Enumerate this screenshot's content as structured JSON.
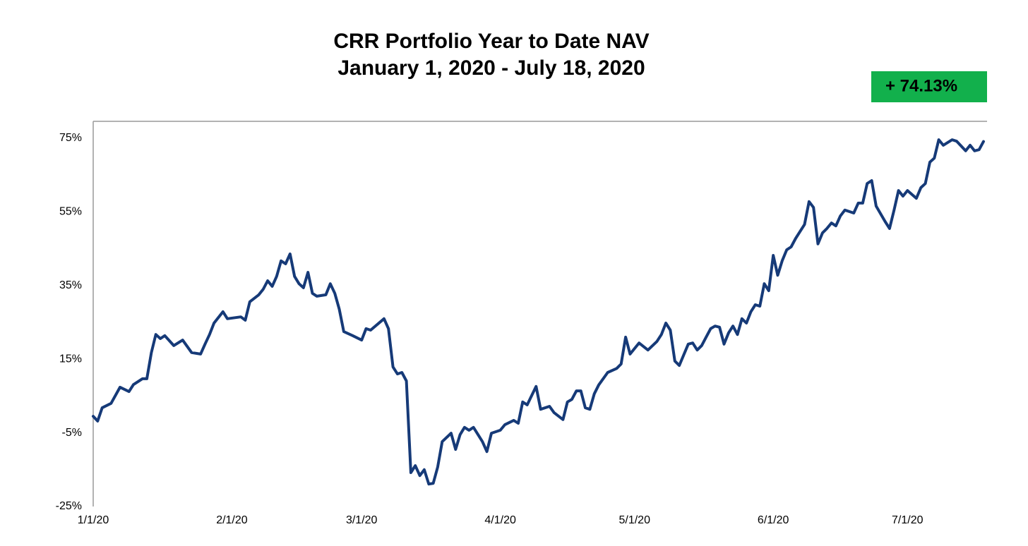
{
  "chart_data": {
    "type": "line",
    "title": "CRR Portfolio Year to Date NAV",
    "subtitle": "January 1, 2020 - July 18, 2020",
    "annotation": "+ 74.13%",
    "annotation_color": "#12b04c",
    "color": "#163a78",
    "x": [
      "2020-01-01",
      "2020-01-02",
      "2020-01-03",
      "2020-01-05",
      "2020-01-07",
      "2020-01-09",
      "2020-01-10",
      "2020-01-12",
      "2020-01-13",
      "2020-01-14",
      "2020-01-15",
      "2020-01-16",
      "2020-01-17",
      "2020-01-19",
      "2020-01-21",
      "2020-01-23",
      "2020-01-25",
      "2020-01-26",
      "2020-01-27",
      "2020-01-28",
      "2020-01-30",
      "2020-01-31",
      "2020-02-03",
      "2020-02-04",
      "2020-02-05",
      "2020-02-07",
      "2020-02-08",
      "2020-02-09",
      "2020-02-10",
      "2020-02-11",
      "2020-02-12",
      "2020-02-13",
      "2020-02-14",
      "2020-02-15",
      "2020-02-16",
      "2020-02-17",
      "2020-02-18",
      "2020-02-19",
      "2020-02-20",
      "2020-02-22",
      "2020-02-23",
      "2020-02-24",
      "2020-02-25",
      "2020-02-26",
      "2020-02-28",
      "2020-03-01",
      "2020-03-02",
      "2020-03-03",
      "2020-03-06",
      "2020-03-07",
      "2020-03-08",
      "2020-03-09",
      "2020-03-10",
      "2020-03-11",
      "2020-03-12",
      "2020-03-13",
      "2020-03-14",
      "2020-03-15",
      "2020-03-16",
      "2020-03-17",
      "2020-03-18",
      "2020-03-19",
      "2020-03-21",
      "2020-03-22",
      "2020-03-23",
      "2020-03-24",
      "2020-03-25",
      "2020-03-26",
      "2020-03-28",
      "2020-03-29",
      "2020-03-30",
      "2020-04-01",
      "2020-04-02",
      "2020-04-04",
      "2020-04-05",
      "2020-04-06",
      "2020-04-07",
      "2020-04-09",
      "2020-04-10",
      "2020-04-12",
      "2020-04-13",
      "2020-04-15",
      "2020-04-16",
      "2020-04-17",
      "2020-04-18",
      "2020-04-19",
      "2020-04-20",
      "2020-04-21",
      "2020-04-22",
      "2020-04-23",
      "2020-04-25",
      "2020-04-27",
      "2020-04-28",
      "2020-04-29",
      "2020-04-30",
      "2020-05-02",
      "2020-05-04",
      "2020-05-06",
      "2020-05-07",
      "2020-05-08",
      "2020-05-09",
      "2020-05-10",
      "2020-05-11",
      "2020-05-13",
      "2020-05-14",
      "2020-05-15",
      "2020-05-16",
      "2020-05-17",
      "2020-05-18",
      "2020-05-19",
      "2020-05-20",
      "2020-05-21",
      "2020-05-22",
      "2020-05-23",
      "2020-05-24",
      "2020-05-25",
      "2020-05-26",
      "2020-05-27",
      "2020-05-28",
      "2020-05-29",
      "2020-05-30",
      "2020-05-31",
      "2020-06-01",
      "2020-06-02",
      "2020-06-03",
      "2020-06-04",
      "2020-06-05",
      "2020-06-06",
      "2020-06-07",
      "2020-06-08",
      "2020-06-09",
      "2020-06-10",
      "2020-06-11",
      "2020-06-12",
      "2020-06-13",
      "2020-06-14",
      "2020-06-15",
      "2020-06-16",
      "2020-06-17",
      "2020-06-18",
      "2020-06-19",
      "2020-06-20",
      "2020-06-21",
      "2020-06-22",
      "2020-06-23",
      "2020-06-24",
      "2020-06-26",
      "2020-06-27",
      "2020-06-28",
      "2020-06-29",
      "2020-06-30",
      "2020-07-01",
      "2020-07-03",
      "2020-07-04",
      "2020-07-05",
      "2020-07-06",
      "2020-07-07",
      "2020-07-08",
      "2020-07-09",
      "2020-07-11",
      "2020-07-12",
      "2020-07-14",
      "2020-07-15",
      "2020-07-16",
      "2020-07-17",
      "2020-07-18"
    ],
    "values": [
      -0.5,
      -1.8,
      1.8,
      3.0,
      7.4,
      6.2,
      8.1,
      9.7,
      9.7,
      16.8,
      21.7,
      20.6,
      21.4,
      18.7,
      20.2,
      16.8,
      16.4,
      19.1,
      21.7,
      24.8,
      27.9,
      26.0,
      26.5,
      25.6,
      30.6,
      32.5,
      34.0,
      36.3,
      34.8,
      37.5,
      41.7,
      40.9,
      43.6,
      37.5,
      35.5,
      34.4,
      38.6,
      32.9,
      32.1,
      32.5,
      35.5,
      32.9,
      28.6,
      22.5,
      21.4,
      20.2,
      23.3,
      22.9,
      26.0,
      23.3,
      12.9,
      11.0,
      11.4,
      9.1,
      -15.8,
      -13.9,
      -16.6,
      -15.0,
      -18.9,
      -18.7,
      -14.3,
      -7.4,
      -5.1,
      -9.5,
      -5.5,
      -3.5,
      -4.3,
      -3.5,
      -7.4,
      -10.1,
      -5.1,
      -4.3,
      -2.8,
      -1.6,
      -2.4,
      3.4,
      2.6,
      7.6,
      1.4,
      2.2,
      0.5,
      -1.4,
      3.4,
      4.1,
      6.4,
      6.4,
      1.8,
      1.4,
      5.6,
      8.0,
      11.4,
      12.5,
      13.7,
      21.0,
      16.4,
      19.4,
      17.5,
      19.8,
      21.7,
      24.8,
      22.9,
      14.5,
      13.3,
      19.1,
      19.4,
      17.5,
      18.7,
      21.0,
      23.3,
      24.0,
      23.7,
      19.1,
      22.1,
      24.0,
      21.7,
      26.0,
      24.8,
      27.9,
      29.8,
      29.4,
      35.5,
      33.6,
      43.2,
      37.8,
      41.7,
      44.7,
      45.5,
      47.8,
      49.7,
      51.6,
      57.8,
      56.2,
      46.3,
      49.3,
      50.5,
      52.0,
      51.2,
      53.9,
      55.5,
      55.1,
      54.7,
      57.4,
      57.4,
      62.7,
      63.5,
      56.6,
      52.4,
      50.5,
      55.5,
      60.8,
      59.3,
      60.8,
      58.7,
      61.6,
      62.7,
      68.5,
      69.6,
      74.6,
      73.1,
      74.6,
      74.2,
      71.6,
      73.1,
      71.6,
      71.9,
      74.13
    ],
    "xlim": [
      "2020-01-01",
      "2020-07-18"
    ],
    "xticks": [
      {
        "value": "2020-01-01",
        "label": "1/1/20"
      },
      {
        "value": "2020-02-01",
        "label": "2/1/20"
      },
      {
        "value": "2020-03-01",
        "label": "3/1/20"
      },
      {
        "value": "2020-04-01",
        "label": "4/1/20"
      },
      {
        "value": "2020-05-01",
        "label": "5/1/20"
      },
      {
        "value": "2020-06-01",
        "label": "6/1/20"
      },
      {
        "value": "2020-07-01",
        "label": "7/1/20"
      }
    ],
    "ylim": [
      -25,
      79.6
    ],
    "yticks": [
      {
        "value": 75,
        "label": "75%"
      },
      {
        "value": 55,
        "label": "55%"
      },
      {
        "value": 35,
        "label": "35%"
      },
      {
        "value": 15,
        "label": "15%"
      },
      {
        "value": -5,
        "label": "-5%"
      },
      {
        "value": -25,
        "label": "-25%"
      }
    ],
    "grid": false
  }
}
